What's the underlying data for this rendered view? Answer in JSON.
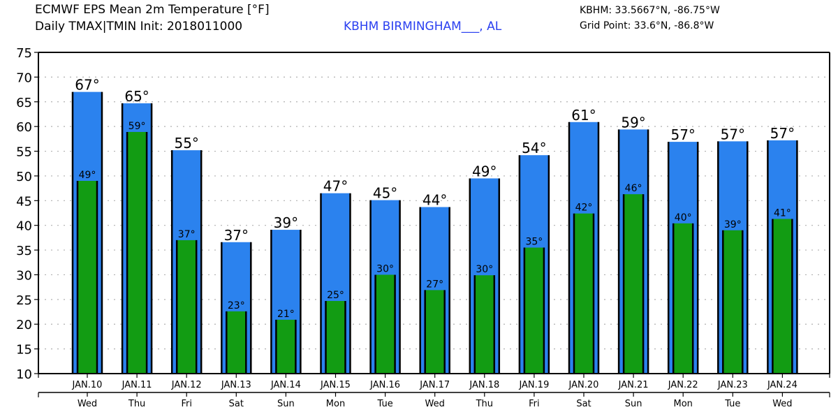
{
  "header": {
    "title_line1": "ECMWF EPS Mean 2m Temperature [°F]",
    "title_line2": "Daily TMAX|TMIN Init: 2018011000",
    "station_label": "KBHM BIRMINGHAM___, AL",
    "station_coords": "KBHM: 33.5667°N, -86.75°W",
    "grid_point": "Grid Point: 33.6°N, -86.8°W"
  },
  "colors": {
    "tmax_bar": "#2b82ee",
    "tmin_bar": "#129c13",
    "station_text": "#2a3ff0",
    "grid": "#b0b0b0"
  },
  "chart_data": {
    "type": "bar",
    "title": "ECMWF EPS Mean 2m Temperature [°F]",
    "subtitle": "Daily TMAX|TMIN Init: 2018011000",
    "xlabel": "",
    "ylabel": "",
    "ylim": [
      10,
      75
    ],
    "yticks": [
      10,
      15,
      20,
      25,
      30,
      35,
      40,
      45,
      50,
      55,
      60,
      65,
      70,
      75
    ],
    "grid": true,
    "categories": [
      "JAN.10",
      "JAN.11",
      "JAN.12",
      "JAN.13",
      "JAN.14",
      "JAN.15",
      "JAN.16",
      "JAN.17",
      "JAN.18",
      "JAN.19",
      "JAN.20",
      "JAN.21",
      "JAN.22",
      "JAN.23",
      "JAN.24"
    ],
    "days": [
      "Wed",
      "Thu",
      "Fri",
      "Sat",
      "Sun",
      "Mon",
      "Tue",
      "Wed",
      "Thu",
      "Fri",
      "Sat",
      "Sun",
      "Mon",
      "Tue",
      "Wed"
    ],
    "series": [
      {
        "name": "TMAX",
        "values": [
          67.0,
          64.7,
          55.2,
          36.6,
          39.1,
          46.5,
          45.1,
          43.7,
          49.5,
          54.2,
          60.9,
          59.4,
          56.9,
          57.0,
          57.2
        ],
        "labels": [
          "67°",
          "65°",
          "55°",
          "37°",
          "39°",
          "47°",
          "45°",
          "44°",
          "49°",
          "54°",
          "61°",
          "59°",
          "57°",
          "57°",
          "57°"
        ]
      },
      {
        "name": "TMIN",
        "values": [
          49.0,
          58.9,
          37.0,
          22.6,
          20.9,
          24.7,
          30.0,
          26.9,
          29.9,
          35.5,
          42.4,
          46.3,
          40.4,
          39.0,
          41.3
        ],
        "labels": [
          "49°",
          "59°",
          "37°",
          "23°",
          "21°",
          "25°",
          "30°",
          "27°",
          "30°",
          "35°",
          "42°",
          "46°",
          "40°",
          "39°",
          "41°"
        ]
      }
    ]
  }
}
